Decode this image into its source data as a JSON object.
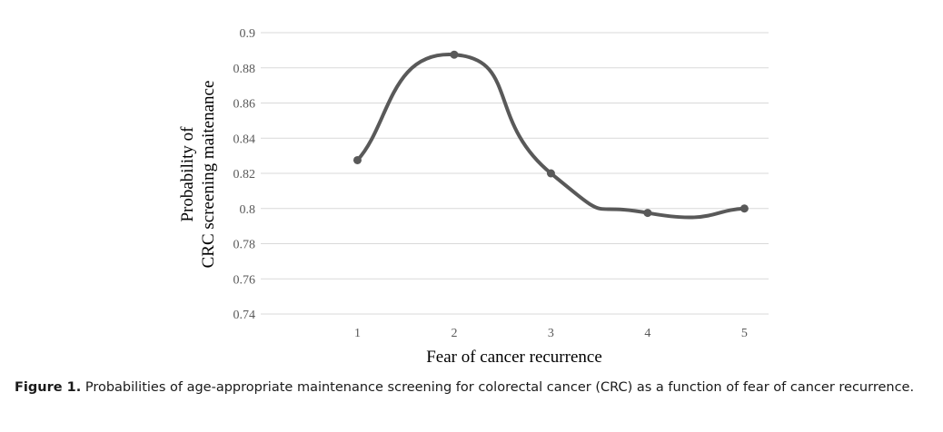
{
  "chart_data": {
    "type": "line",
    "smooth": true,
    "categories": [
      "1",
      "2",
      "3",
      "4",
      "5"
    ],
    "values": [
      0.8275,
      0.8875,
      0.82,
      0.7975,
      0.8
    ],
    "xlabel": "Fear of cancer recurrence",
    "ylabel": [
      "Probability of",
      "CRC screening  maitenance"
    ],
    "ylim": [
      0.74,
      0.9
    ],
    "yticks": [
      "0.74",
      "0.76",
      "0.78",
      "0.8",
      "0.82",
      "0.84",
      "0.86",
      "0.88",
      "0.9"
    ],
    "grid": "horizontal",
    "line_color": "#595959",
    "grid_color": "#d9d9d9"
  },
  "caption": {
    "label": "Figure 1.",
    "text": " Probabilities of age-appropriate maintenance screening for colorectal cancer (CRC) as a function of fear of cancer recurrence."
  }
}
